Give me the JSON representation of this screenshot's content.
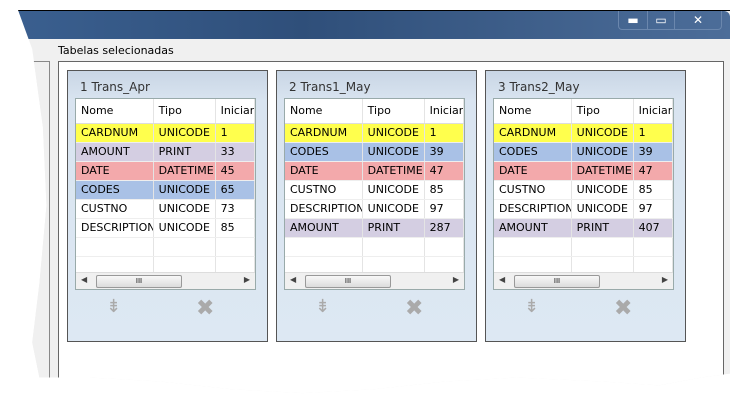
{
  "window": {
    "controls": [
      "minimize",
      "maximize",
      "close"
    ]
  },
  "section_label": "Tabelas selecionadas",
  "columns": [
    "Nome",
    "Tipo",
    "Iniciar"
  ],
  "colors": {
    "yellow": "#ffff4d",
    "lavender": "#d4cee2",
    "pink": "#f3a9ab",
    "blue": "#a9c1e6"
  },
  "panels": [
    {
      "title": "1 Trans_Apr",
      "rows": [
        [
          "CARDNUM",
          "UNICODE",
          "1",
          "yellow"
        ],
        [
          "AMOUNT",
          "PRINT",
          "33",
          "lavender"
        ],
        [
          "DATE",
          "DATETIME",
          "45",
          "pink"
        ],
        [
          "CODES",
          "UNICODE",
          "65",
          "blue"
        ],
        [
          "CUSTNO",
          "UNICODE",
          "73",
          ""
        ],
        [
          "DESCRIPTION",
          "UNICODE",
          "85",
          ""
        ]
      ]
    },
    {
      "title": "2 Trans1_May",
      "rows": [
        [
          "CARDNUM",
          "UNICODE",
          "1",
          "yellow"
        ],
        [
          "CODES",
          "UNICODE",
          "39",
          "blue"
        ],
        [
          "DATE",
          "DATETIME",
          "47",
          "pink"
        ],
        [
          "CUSTNO",
          "UNICODE",
          "85",
          ""
        ],
        [
          "DESCRIPTION",
          "UNICODE",
          "97",
          ""
        ],
        [
          "AMOUNT",
          "PRINT",
          "287",
          "lavender"
        ]
      ]
    },
    {
      "title": "3 Trans2_May",
      "rows": [
        [
          "CARDNUM",
          "UNICODE",
          "1",
          "yellow"
        ],
        [
          "CODES",
          "UNICODE",
          "39",
          "blue"
        ],
        [
          "DATE",
          "DATETIME",
          "47",
          "pink"
        ],
        [
          "CUSTNO",
          "UNICODE",
          "85",
          ""
        ],
        [
          "DESCRIPTION",
          "UNICODE",
          "97",
          ""
        ],
        [
          "AMOUNT",
          "PRINT",
          "407",
          "lavender"
        ]
      ]
    }
  ]
}
